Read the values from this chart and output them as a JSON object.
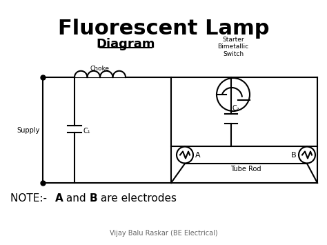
{
  "title": "Fluorescent Lamp",
  "subtitle": "Diagram",
  "footer": "Vijay Balu Raskar (BE Electrical)",
  "bg_color": "#ffffff",
  "line_color": "#000000",
  "title_fontsize": 22,
  "subtitle_fontsize": 13,
  "note_fontsize": 11,
  "footer_fontsize": 7
}
